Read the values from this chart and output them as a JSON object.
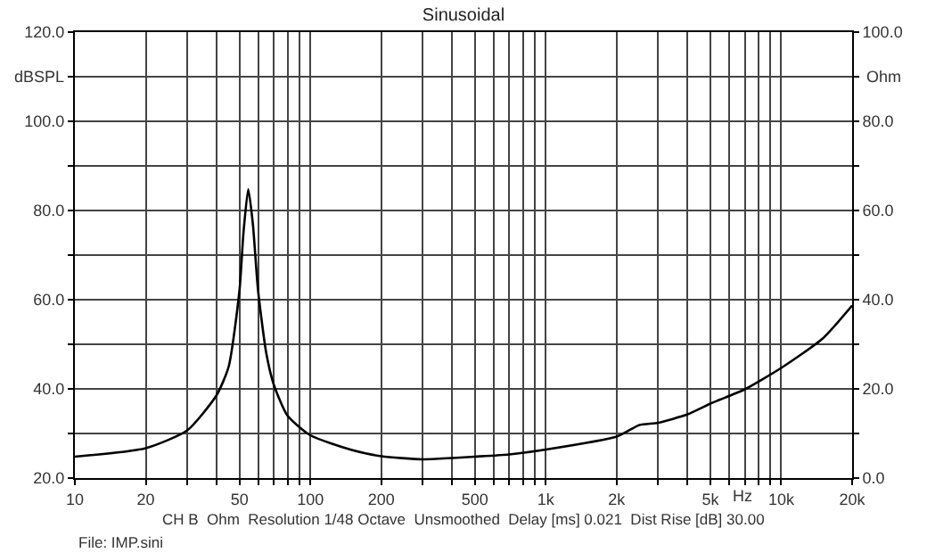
{
  "chart_data": {
    "type": "line",
    "title": "Sinusoidal",
    "ylabel": "dBSPL",
    "y2label": "Ohm",
    "xlabel": "Hz",
    "x": [
      10,
      20,
      30,
      40,
      45,
      50,
      52,
      54.5,
      57,
      60,
      65,
      70,
      80,
      100,
      150,
      200,
      300,
      400,
      500,
      700,
      1000,
      2000,
      2500,
      3000,
      4000,
      5000,
      5500,
      7000,
      10000,
      15000,
      20000
    ],
    "series": [
      {
        "color": "#000000",
        "axis": "y2",
        "values": [
          4.8,
          6.7,
          10.7,
          18.6,
          25,
          42,
          55,
          64.8,
          57,
          42,
          28,
          20.9,
          14,
          9.6,
          6.3,
          4.9,
          4.2,
          4.5,
          4.8,
          5.3,
          6.4,
          9.3,
          11.9,
          12.4,
          14.3,
          16.7,
          17.6,
          19.9,
          24.7,
          31.3,
          38.7
        ]
      }
    ],
    "log": "x",
    "grid": true,
    "legend": false,
    "marker": "none",
    "line_style": "solid",
    "xlim": [
      10,
      20000
    ],
    "xticks": [
      {
        "value": 10,
        "label": "10"
      },
      {
        "value": 20,
        "label": "20"
      },
      {
        "value": 30,
        "label": null
      },
      {
        "value": 40,
        "label": null
      },
      {
        "value": 50,
        "label": "50"
      },
      {
        "value": 60,
        "label": null
      },
      {
        "value": 70,
        "label": null
      },
      {
        "value": 80,
        "label": null
      },
      {
        "value": 90,
        "label": null
      },
      {
        "value": 100,
        "label": "100"
      },
      {
        "value": 200,
        "label": "200"
      },
      {
        "value": 300,
        "label": null
      },
      {
        "value": 400,
        "label": null
      },
      {
        "value": 500,
        "label": "500"
      },
      {
        "value": 600,
        "label": null
      },
      {
        "value": 700,
        "label": null
      },
      {
        "value": 800,
        "label": null
      },
      {
        "value": 900,
        "label": null
      },
      {
        "value": 1000,
        "label": "1k"
      },
      {
        "value": 2000,
        "label": "2k"
      },
      {
        "value": 3000,
        "label": null
      },
      {
        "value": 4000,
        "label": null
      },
      {
        "value": 5000,
        "label": "5k"
      },
      {
        "value": 6000,
        "label": null
      },
      {
        "value": 7000,
        "label": null
      },
      {
        "value": 8000,
        "label": null
      },
      {
        "value": 9000,
        "label": null
      },
      {
        "value": 10000,
        "label": "10k"
      },
      {
        "value": 20000,
        "label": "20k"
      }
    ],
    "ylim": [
      20,
      120
    ],
    "yticks": [
      {
        "value": 20,
        "label": "20.0"
      },
      {
        "value": 30,
        "label": null
      },
      {
        "value": 40,
        "label": "40.0"
      },
      {
        "value": 50,
        "label": null
      },
      {
        "value": 60,
        "label": "60.0"
      },
      {
        "value": 70,
        "label": null
      },
      {
        "value": 80,
        "label": "80.0"
      },
      {
        "value": 90,
        "label": null
      },
      {
        "value": 100,
        "label": "100.0"
      },
      {
        "value": 110,
        "label": null
      },
      {
        "value": 120,
        "label": "120.0"
      }
    ],
    "y2lim": [
      0,
      100
    ],
    "y2ticks": [
      {
        "value": 0,
        "label": "0.0"
      },
      {
        "value": 10,
        "label": null
      },
      {
        "value": 20,
        "label": "20.0"
      },
      {
        "value": 30,
        "label": null
      },
      {
        "value": 40,
        "label": "40.0"
      },
      {
        "value": 50,
        "label": null
      },
      {
        "value": 60,
        "label": "60.0"
      },
      {
        "value": 70,
        "label": null
      },
      {
        "value": 80,
        "label": "80.0"
      },
      {
        "value": 90,
        "label": null
      },
      {
        "value": 100,
        "label": "100.0"
      }
    ],
    "annotations": [
      "CH B  Ohm  Resolution 1/48 Octave  Unsmoothed  Delay [ms] 0.021  Dist Rise [dB] 30.00",
      "File: IMP.sini"
    ]
  }
}
